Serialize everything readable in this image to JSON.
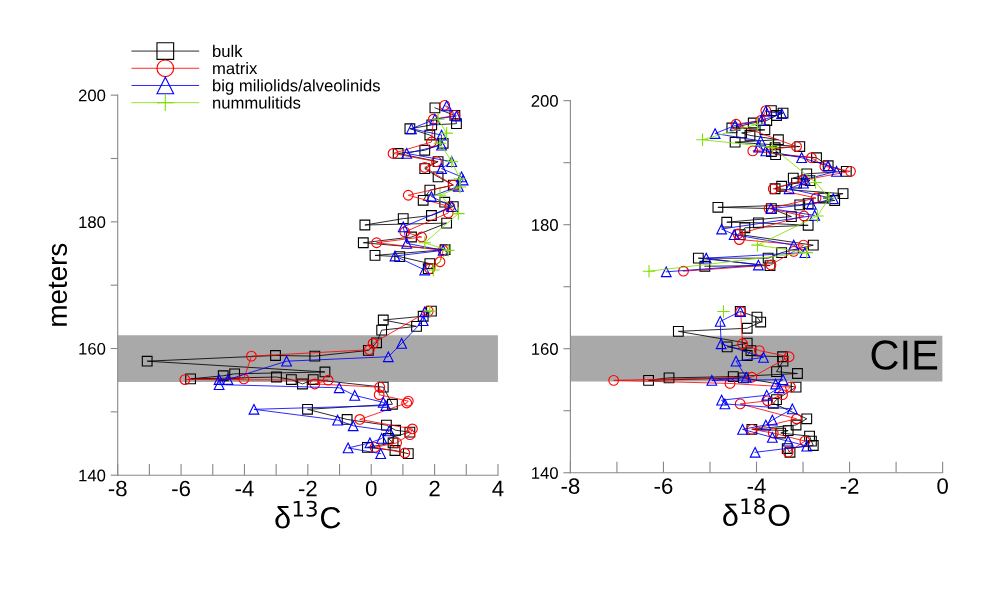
{
  "chart_data": [
    {
      "type": "line",
      "xlabel": "δ$^{13}$C",
      "ylabel": "meters",
      "xlim": [
        -8,
        4
      ],
      "xticks": [
        -8,
        {
          "value": -7,
          "label": null
        },
        -6,
        {
          "value": -5,
          "label": null
        },
        -4,
        {
          "value": -3,
          "label": null
        },
        -2,
        {
          "value": -1,
          "label": null
        },
        0,
        {
          "value": 1,
          "label": null
        },
        2,
        {
          "value": 3,
          "label": null
        },
        4
      ],
      "ylim": [
        140,
        200
      ],
      "yticks": [
        140,
        {
          "value": 150,
          "label": null
        },
        160,
        {
          "value": 170,
          "label": null
        },
        180,
        {
          "value": 190,
          "label": null
        },
        200
      ],
      "grid": false,
      "legend": "top left",
      "line_style": "solid",
      "bands": [
        {
          "axis": "y",
          "from": 154.7,
          "to": 162.1,
          "color": "#8c8c8c"
        }
      ],
      "series": [
        {
          "name": "bulk",
          "color": "#000000",
          "marker": "square",
          "x": [
            2.01,
            2.64,
            2.69,
            1.91,
            1.22,
            1.85,
            2.27,
            1.69,
            0.85,
            2.11,
            1.69,
            2.11,
            2.59,
            1.85,
            1.64,
            2.32,
            2.59,
            1.9,
            1.01,
            -0.2,
            2.38,
            1.27,
            -0.25,
            2.33,
            0.12,
            0.9,
            1.85,
            1.8,
            null,
            1.9,
            1.64,
            0.38,
            1.43,
            0.33,
            0.17,
            -0.09,
            -1.78,
            -3.02,
            -7.07,
            -1.46,
            -4.31,
            -4.67,
            -5.7,
            -2.99,
            -2.52,
            -2.17,
            -1.83,
            0.38,
            0.67,
            -2.01,
            -0.76,
            0.48,
            0.77,
            1.22,
            0.54,
            0.69,
            -0.12,
            0.75,
            1.17
          ],
          "values": [
            198.0,
            196.8,
            195.5,
            195.3,
            194.7,
            193.7,
            192.4,
            191.3,
            190.8,
            189.5,
            188.4,
            187.1,
            185.8,
            185.0,
            183.4,
            183.1,
            182.4,
            181.0,
            180.5,
            179.5,
            179.8,
            177.6,
            176.7,
            175.6,
            174.7,
            174.5,
            173.4,
            172.6,
            null,
            165.9,
            165.1,
            164.5,
            163.5,
            162.9,
            160.9,
            159.7,
            158.8,
            158.9,
            158.0,
            156.3,
            156.0,
            155.7,
            155.2,
            155.5,
            155.1,
            154.4,
            155.1,
            153.9,
            151.2,
            150.4,
            148.8,
            147.9,
            147.1,
            146.8,
            145.8,
            145.1,
            144.4,
            143.9,
            143.4
          ]
        },
        {
          "name": "matrix",
          "color": "#ff0000",
          "marker": "circle",
          "x": [
            2.32,
            2.64,
            1.96,
            1.9,
            0.69,
            2.06,
            1.69,
            2.59,
            1.17,
            2.48,
            2.43,
            1.06,
            1.59,
            0.17,
            2.27,
            2.17,
            1.85,
            null,
            1.8,
            0.06,
            -0.06,
            -3.78,
            -4.02,
            -5.88,
            -1.36,
            -1.78,
            0.27,
            0.25,
            1.17,
            1.12,
            -0.36,
            1.3,
            1.22,
            0.8,
            0.12,
            1.06
          ],
          "values": [
            198.4,
            196.8,
            196.2,
            192.6,
            190.8,
            189.5,
            188.6,
            185.8,
            184.2,
            182.4,
            181.4,
            178.4,
            177.6,
            176.7,
            175.5,
            173.7,
            172.6,
            null,
            165.9,
            160.8,
            159.8,
            158.8,
            155.2,
            155.1,
            155.0,
            154.4,
            153.9,
            152.7,
            151.7,
            151.4,
            148.8,
            147.3,
            146.4,
            145.1,
            144.4,
            143.5
          ]
        },
        {
          "name": "big miliolids/alveolinids",
          "color": "#0000ff",
          "marker": "triangle",
          "x": [
            2.38,
            2.69,
            2.01,
            1.27,
            2.22,
            2.22,
            1.12,
            2.54,
            2.22,
            2.85,
            2.9,
            2.75,
            1.9,
            2.54,
            1.01,
            1.12,
            2.27,
            0.75,
            1.69,
            null,
            1.69,
            1.64,
            0.96,
            0.54,
            -2.67,
            -4.52,
            -4.8,
            -4.8,
            -1.01,
            -0.52,
            0.38,
            0.46,
            -3.7,
            -1.06,
            -0.57,
            0.57,
            0.33,
            -0.04,
            -0.73,
            0.3
          ],
          "values": [
            198.3,
            196.7,
            196.2,
            194.7,
            193.7,
            192.1,
            190.8,
            189.5,
            188.4,
            187.1,
            186.6,
            185.6,
            184.0,
            182.4,
            179.2,
            176.6,
            175.5,
            174.6,
            172.4,
            null,
            165.8,
            164.4,
            160.8,
            158.7,
            158.0,
            155.1,
            155.1,
            154.3,
            153.8,
            152.6,
            151.5,
            151.0,
            150.4,
            148.7,
            147.8,
            147.0,
            145.8,
            145.1,
            144.3,
            143.4
          ]
        },
        {
          "name": "nummulitids",
          "color": "#80e000",
          "marker": "cross",
          "x": [
            2.11,
            2.38,
            2.17,
            2.54,
            2.8,
            2.8,
            2.17,
            2.75,
            1.69,
            2.43,
            1.96,
            null,
            1.85
          ],
          "values": [
            196.2,
            194.0,
            192.4,
            189.5,
            186.8,
            185.5,
            184.2,
            181.3,
            176.7,
            175.5,
            172.4,
            null,
            165.9
          ]
        }
      ]
    },
    {
      "type": "line",
      "xlabel": "δ$^{18}$O",
      "xlim": [
        -8,
        0
      ],
      "xticks": [
        -8,
        {
          "value": -7,
          "label": null
        },
        -6,
        {
          "value": -5,
          "label": null
        },
        -4,
        {
          "value": -3,
          "label": null
        },
        -2,
        {
          "value": -1,
          "label": null
        },
        0
      ],
      "ylim": [
        140,
        200
      ],
      "yticks": [
        140,
        {
          "value": 150,
          "label": null
        },
        160,
        {
          "value": 170,
          "label": null
        },
        180,
        {
          "value": 190,
          "label": null
        },
        200
      ],
      "grid": false,
      "line_style": "solid",
      "bands": [
        {
          "axis": "y",
          "from": 154.7,
          "to": 162.1,
          "label": "CIE",
          "color": "#8c8c8c"
        }
      ],
      "series": [
        {
          "color": "#000000",
          "marker": "square",
          "x": [
            -3.68,
            -3.43,
            -3.57,
            -3.78,
            -4.07,
            -4.53,
            -3.82,
            -4.32,
            -4.14,
            -3.53,
            -4.46,
            -3.07,
            -3.6,
            -3.68,
            -3.59,
            -2.71,
            -2.46,
            -2.07,
            -2.92,
            -3.21,
            -2.85,
            -3.14,
            -3.46,
            -3.6,
            -2.14,
            -2.57,
            -2.32,
            -2.89,
            -3.07,
            -4.83,
            -3.68,
            -3.25,
            -4.64,
            -3.96,
            -2.89,
            -4.25,
            -4.35,
            -2.78,
            -3.46,
            -3.75,
            -5.25,
            -3.71,
            -5.11,
            null,
            -4.35,
            -3.99,
            -3.91,
            -4.2,
            -5.68,
            -4.2,
            -4.63,
            -4.12,
            -4.2,
            -3.44,
            -3.43,
            -3.57,
            -3.12,
            -4.5,
            -5.88,
            -6.32,
            -4.28,
            -3.15,
            -3.57,
            -3.64,
            -2.92,
            -3.15,
            -4.1,
            -3.32,
            -3.48,
            -2.86,
            -2.82,
            -2.78,
            -3.34,
            -3.28
          ],
          "values": [
            198.4,
            198.0,
            197.6,
            196.8,
            196.4,
            195.6,
            195.3,
            194.8,
            194.4,
            193.7,
            193.3,
            192.6,
            192.4,
            191.8,
            191.3,
            190.8,
            189.5,
            188.6,
            188.2,
            187.5,
            187.1,
            186.7,
            186.2,
            185.8,
            185.0,
            184.3,
            183.9,
            183.4,
            183.2,
            182.8,
            182.6,
            181.3,
            180.4,
            180.3,
            179.9,
            179.5,
            178.4,
            176.7,
            175.5,
            174.6,
            174.6,
            173.4,
            173.3,
            null,
            166.0,
            165.1,
            164.3,
            163.3,
            162.8,
            160.9,
            160.3,
            159.7,
            158.9,
            158.7,
            158.0,
            156.3,
            156.0,
            155.5,
            155.3,
            154.9,
            155.3,
            153.8,
            151.8,
            151.2,
            148.7,
            147.7,
            147.0,
            146.8,
            146.4,
            145.9,
            145.1,
            144.4,
            143.9,
            143.3
          ]
        },
        {
          "color": "#ff0000",
          "marker": "circle",
          "x": [
            -3.8,
            -3.91,
            -4.44,
            -3.14,
            -4.08,
            -2.82,
            -2.53,
            -1.98,
            -2.99,
            -3.64,
            -2.72,
            -3.73,
            -2.98,
            -4.4,
            -4.37,
            -2.99,
            -3.2,
            -3.69,
            -5.57,
            null,
            -4.34,
            -4.3,
            -3.94,
            -3.3,
            -4.1,
            -7.07,
            -4.57,
            -3.27,
            -3.44,
            -3.76,
            -4.35,
            -3.14,
            -4.1,
            -3.64,
            -2.96,
            -3.32
          ],
          "values": [
            198.4,
            196.8,
            196.2,
            192.6,
            191.9,
            190.8,
            189.4,
            188.6,
            187.2,
            185.8,
            184.3,
            182.6,
            181.4,
            178.5,
            177.6,
            176.7,
            175.7,
            173.5,
            172.5,
            null,
            166.0,
            160.8,
            159.7,
            158.7,
            155.4,
            154.9,
            154.4,
            153.8,
            152.6,
            151.6,
            151.1,
            148.7,
            147.0,
            146.4,
            145.1,
            143.3
          ]
        },
        {
          "color": "#0000ff",
          "marker": "triangle",
          "x": [
            -3.8,
            -3.46,
            -3.9,
            -4.46,
            -4.89,
            -3.91,
            -3.95,
            -3.8,
            -3.03,
            -2.46,
            -2.28,
            -2.96,
            -2.99,
            -3.3,
            -2.35,
            -2.82,
            -3.69,
            -2.75,
            -4.75,
            -4.48,
            -3.2,
            -2.96,
            -5.08,
            -3.96,
            -5.94,
            null,
            -4.35,
            -4.78,
            -4.76,
            -3.85,
            -4.44,
            -4.22,
            -4.96,
            -3.43,
            -3.59,
            -3.51,
            -3.78,
            -4.75,
            -4.68,
            -3.23,
            -3.66,
            -3.8,
            -4.3,
            -3.66,
            -3.32,
            -2.92,
            -4.03
          ],
          "values": [
            198.3,
            197.9,
            196.8,
            196.0,
            194.7,
            193.5,
            192.5,
            191.9,
            190.8,
            189.5,
            188.6,
            187.3,
            186.7,
            185.8,
            184.2,
            183.3,
            182.6,
            181.5,
            179.3,
            178.4,
            176.7,
            175.5,
            174.6,
            173.5,
            172.4,
            null,
            166.0,
            164.4,
            160.8,
            158.6,
            158.0,
            155.4,
            154.9,
            155.0,
            154.3,
            153.7,
            152.5,
            151.7,
            151.1,
            150.3,
            148.5,
            147.7,
            147.0,
            145.7,
            145.1,
            144.3,
            143.3
          ]
        },
        {
          "color": "#80e000",
          "marker": "cross",
          "x": [
            -3.98,
            -5.16,
            -3.66,
            -2.73,
            -2.44,
            -2.69,
            -3.98,
            -2.92,
            -6.31,
            null,
            -4.71
          ],
          "values": [
            196.2,
            193.7,
            192.5,
            186.8,
            184.3,
            181.4,
            176.7,
            175.5,
            172.5,
            null,
            166.0
          ]
        }
      ]
    }
  ]
}
